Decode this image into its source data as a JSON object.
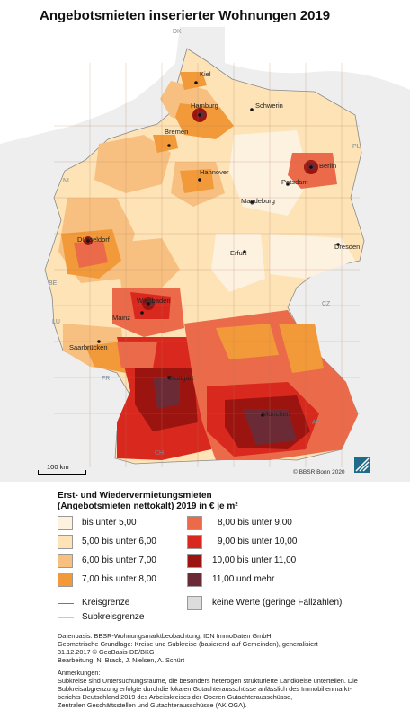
{
  "title": "Angebotsmieten inserierter Wohnungen 2019",
  "cities": [
    {
      "id": "kiel",
      "name": "Kiel"
    },
    {
      "id": "hamburg",
      "name": "Hamburg"
    },
    {
      "id": "schwerin",
      "name": "Schwerin"
    },
    {
      "id": "bremen",
      "name": "Bremen"
    },
    {
      "id": "berlin",
      "name": "Berlin"
    },
    {
      "id": "hannover",
      "name": "Hannover"
    },
    {
      "id": "potsdam",
      "name": "Potsdam"
    },
    {
      "id": "magdeburg",
      "name": "Magdeburg"
    },
    {
      "id": "duesseldorf",
      "name": "Düsseldorf"
    },
    {
      "id": "dresden",
      "name": "Dresden"
    },
    {
      "id": "erfurt",
      "name": "Erfurt"
    },
    {
      "id": "wiesbaden",
      "name": "Wiesbaden"
    },
    {
      "id": "mainz",
      "name": "Mainz"
    },
    {
      "id": "saarbruecken",
      "name": "Saarbrücken"
    },
    {
      "id": "stuttgart",
      "name": "Stuttgart"
    },
    {
      "id": "muenchen",
      "name": "München"
    }
  ],
  "countries": [
    "DK",
    "PL",
    "NL",
    "BE",
    "LU",
    "CZ",
    "FR",
    "AT",
    "CH"
  ],
  "scale_label": "100 km",
  "copyright": "© BBSR Bonn 2020",
  "legend": {
    "title_line1": "Erst- und Wiedervermietungsmieten",
    "title_line2": "(Angebotsmieten nettokalt) 2019 in € je m²",
    "classes": [
      {
        "label": "bis unter  5,00",
        "color": "#fdf1df"
      },
      {
        "label": "5,00  bis unter  6,00",
        "color": "#fde3b6"
      },
      {
        "label": "6,00  bis unter  7,00",
        "color": "#f8c080"
      },
      {
        "label": "7,00  bis unter  8,00",
        "color": "#f29a3a"
      },
      {
        "label": "8,00  bis unter    9,00",
        "color": "#ea6a4a"
      },
      {
        "label": "9,00  bis unter  10,00",
        "color": "#d9281e"
      },
      {
        "label": "10,00  bis unter  11,00",
        "color": "#9c1410"
      },
      {
        "label": "11,00  und mehr",
        "color": "#6a2b36"
      }
    ],
    "kreisgrenze": "Kreisgrenze",
    "subkreisgrenze": "Subkreisgrenze",
    "keine_werte": "keine Werte (geringe Fallzahlen)",
    "keine_werte_color": "#dcdcdc"
  },
  "sources": [
    "Datenbasis: BBSR-Wohnungsmarktbeobachtung, IDN ImmoDaten GmbH",
    "Geometrische Grundlage: Kreise und Subkreise (basierend auf Gemeinden), generalisiert",
    "31.12.2017 © GeoBasis-DE/BKG",
    "Bearbeitung: N. Brack, J. Nielsen, A. Schürt"
  ],
  "notes_heading": "Anmerkungen:",
  "notes": [
    "Subkreise sind Untersuchungsräume, die besonders heterogen strukturierte Landkreise unterteilen. Die",
    "Subkreisabgrenzung erfolgte durchdie lokalen Gutachterausschüsse anlässlich des Immobilienmarkt-",
    "berichts Deutschland 2019 des Arbeitskreises der Oberen Gutachterausschüsse,",
    "Zentralen Geschäftsstellen und Gutachterausschüsse (AK OGA)."
  ]
}
